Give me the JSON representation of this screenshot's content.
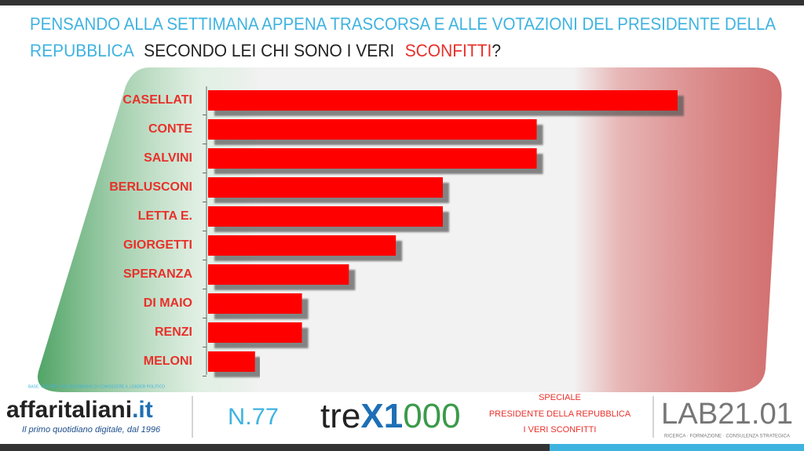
{
  "chart_data": {
    "type": "bar",
    "title_parts": [
      "PENSANDO ALLA SETTIMANA APPENA TRASCORSA E ALLE VOTAZIONI DEL PRESIDENTE DELLA",
      "REPUBBLICA",
      "SECONDO LEI CHI SONO I VERI",
      "SCONFITTI",
      "?"
    ],
    "categories": [
      "CASELLATI",
      "CONTE",
      "SALVINI",
      "BERLUSCONI",
      "LETTA E.",
      "GIORGETTI",
      "SPERANZA",
      "DI MAIO",
      "RENZI",
      "MELONI"
    ],
    "values": [
      10,
      7,
      7,
      5,
      5,
      4,
      3,
      2,
      2,
      1
    ],
    "color": "#ff0000",
    "xlim": [
      0,
      10
    ],
    "note": "BASE: COLORO CHE DICHIARANO DI CONOSCERE IL LEADER POLITICO"
  },
  "footer": {
    "brand": "affaritaliani",
    "brand_suffix": ".it",
    "tagline": "Il primo quotidiano digitale, dal 1996",
    "number": "N.77",
    "logo_parts": [
      "tre",
      "X1",
      "000"
    ],
    "special": [
      "SPECIALE",
      "PRESIDENTE DELLA REPUBBLICA",
      "I VERI SCONFITTI"
    ],
    "lab": "LAB21.01",
    "lab_sub": "RICERCA · FORMAZIONE · CONSULENZA STRATEGICA"
  }
}
